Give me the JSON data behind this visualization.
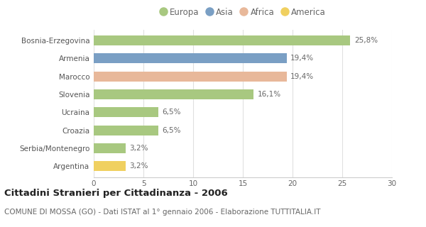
{
  "categories": [
    "Bosnia-Erzegovina",
    "Armenia",
    "Marocco",
    "Slovenia",
    "Ucraina",
    "Croazia",
    "Serbia/Montenegro",
    "Argentina"
  ],
  "values": [
    25.8,
    19.4,
    19.4,
    16.1,
    6.5,
    6.5,
    3.2,
    3.2
  ],
  "labels": [
    "25,8%",
    "19,4%",
    "19,4%",
    "16,1%",
    "6,5%",
    "6,5%",
    "3,2%",
    "3,2%"
  ],
  "colors": [
    "#a8c880",
    "#7a9fc4",
    "#e8b89a",
    "#a8c880",
    "#a8c880",
    "#a8c880",
    "#a8c880",
    "#f0d060"
  ],
  "legend_labels": [
    "Europa",
    "Asia",
    "Africa",
    "America"
  ],
  "legend_colors": [
    "#a8c880",
    "#7a9fc4",
    "#e8b89a",
    "#f0d060"
  ],
  "xlim": [
    0,
    30
  ],
  "xticks": [
    0,
    5,
    10,
    15,
    20,
    25,
    30
  ],
  "title": "Cittadini Stranieri per Cittadinanza - 2006",
  "subtitle": "COMUNE DI MOSSA (GO) - Dati ISTAT al 1° gennaio 2006 - Elaborazione TUTTITALIA.IT",
  "background_color": "#ffffff",
  "bar_height": 0.55,
  "title_fontsize": 9.5,
  "subtitle_fontsize": 7.5,
  "label_fontsize": 7.5,
  "tick_fontsize": 7.5,
  "legend_fontsize": 8.5,
  "ytick_fontsize": 7.5
}
